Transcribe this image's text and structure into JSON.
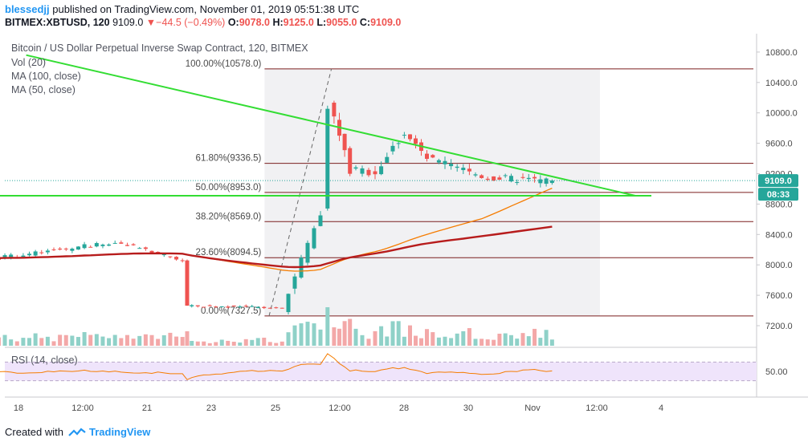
{
  "header": {
    "user": "blessedjj",
    "published": "published on TradingView.com, November 01, 2019 05:51:38 UTC",
    "symbol": "BITMEX:XBTUSD, 120",
    "last": "9109.0",
    "change": "−44.5 (−0.49%)",
    "o_label": "O:",
    "o_value": "9078.0",
    "h_label": "H:",
    "h_value": "9125.0",
    "l_label": "L:",
    "l_value": "9055.0",
    "c_label": "C:",
    "c_value": "9109.0"
  },
  "legend": {
    "title": "Bitcoin / US Dollar Perpetual Inverse Swap Contract, 120, BITMEX",
    "vol": "Vol (20)",
    "ma100": "MA (100, close)",
    "ma50": "MA (50, close)",
    "rsi": "RSI (14, close)"
  },
  "colors": {
    "up": "#26a69a",
    "down": "#ef5350",
    "ma100": "#b71c1c",
    "ma50": "#f57c00",
    "trend": "#33dd33",
    "fib": "#7b1f1f",
    "rsi": "#f57c00"
  },
  "chart_data": {
    "type": "candlestick",
    "x_ticks": [
      "18",
      "12:00",
      "21",
      "23",
      "25",
      "12:00",
      "28",
      "30",
      "Nov",
      "12:00",
      "4"
    ],
    "y_ticks": [
      7200.0,
      7600.0,
      8000.0,
      8400.0,
      8800.0,
      9200.0,
      9600.0,
      10000.0,
      10400.0,
      10800.0
    ],
    "y_tick_labels": [
      "7200.0",
      "7600.0",
      "8000.0",
      "8400.0",
      "8800.0",
      "9200.0",
      "9600.0",
      "10000.0",
      "10400.0",
      "10800.0"
    ],
    "ylim": [
      7000,
      10900
    ],
    "last_price": "9109.0",
    "countdown": "08:33",
    "fib_levels": [
      {
        "label": "100.00%(10578.0)",
        "value": 10578.0
      },
      {
        "label": "61.80%(9336.5)",
        "value": 9336.5
      },
      {
        "label": "50.00%(8953.0)",
        "value": 8953.0
      },
      {
        "label": "38.20%(8569.0)",
        "value": 8569.0
      },
      {
        "label": "23.60%(8094.5)",
        "value": 8094.5
      },
      {
        "label": "0.00%(7327.5)",
        "value": 7327.5
      }
    ],
    "trend_lines": [
      {
        "name": "descending-resistance",
        "from": [
          0.07,
          10760
        ],
        "to": [
          9.55,
          8910
        ]
      },
      {
        "name": "horizontal-support",
        "from": [
          -2.5,
          8910
        ],
        "to": [
          9.8,
          8910
        ]
      }
    ],
    "rsi": {
      "ylim": [
        0,
        100
      ],
      "ticks": [
        50.0
      ],
      "tick_labels": [
        "50.00"
      ],
      "band": [
        30,
        70
      ]
    },
    "segments": [
      {
        "from": -2.5,
        "to": -0.5,
        "start": 8110,
        "end": 8070,
        "noise": 45,
        "vol": 0.28
      },
      {
        "from": -0.5,
        "to": 1.5,
        "start": 8070,
        "end": 8300,
        "noise": 55,
        "vol": 0.3
      },
      {
        "from": 1.5,
        "to": 2.55,
        "start": 8300,
        "end": 8060,
        "noise": 50,
        "vol": 0.3
      },
      {
        "from": 2.55,
        "to": 2.6,
        "start": 8060,
        "end": 7460,
        "noise": 60,
        "vol": 0.85
      },
      {
        "from": 2.6,
        "to": 4.1,
        "start": 7460,
        "end": 7440,
        "noise": 30,
        "vol": 0.18
      },
      {
        "from": 4.1,
        "to": 4.7,
        "start": 7440,
        "end": 8700,
        "noise": 140,
        "vol": 0.6
      },
      {
        "from": 4.7,
        "to": 4.82,
        "start": 8700,
        "end": 10150,
        "noise": 200,
        "vol": 1.0
      },
      {
        "from": 4.82,
        "to": 5.15,
        "start": 10150,
        "end": 9250,
        "noise": 160,
        "vol": 0.65
      },
      {
        "from": 5.15,
        "to": 5.55,
        "start": 9250,
        "end": 9230,
        "noise": 120,
        "vol": 0.45
      },
      {
        "from": 5.55,
        "to": 6.0,
        "start": 9230,
        "end": 9750,
        "noise": 120,
        "vol": 0.55
      },
      {
        "from": 6.0,
        "to": 6.35,
        "start": 9750,
        "end": 9400,
        "noise": 110,
        "vol": 0.45
      },
      {
        "from": 6.35,
        "to": 7.3,
        "start": 9400,
        "end": 9150,
        "noise": 110,
        "vol": 0.4
      },
      {
        "from": 7.3,
        "to": 8.3,
        "start": 9150,
        "end": 9109,
        "noise": 100,
        "vol": 0.38
      }
    ]
  }
}
